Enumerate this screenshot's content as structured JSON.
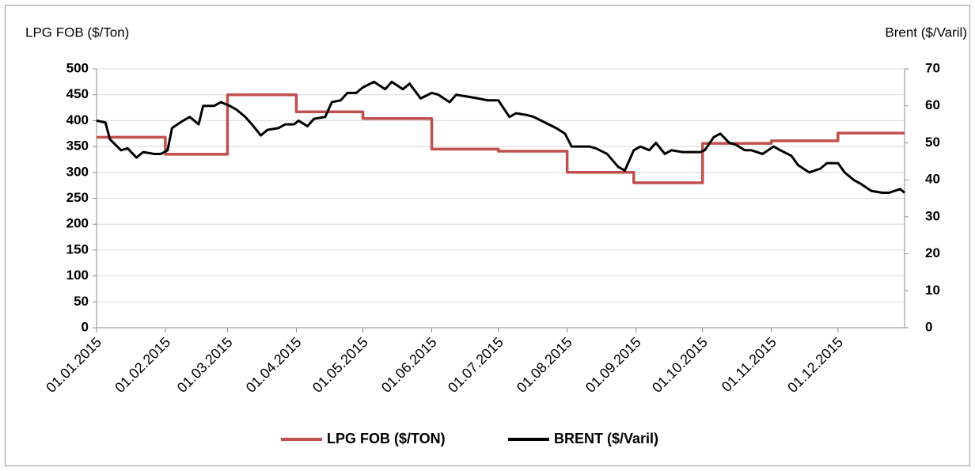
{
  "chart_data": {
    "type": "line",
    "y_label": "LPG FOB ($/Ton)",
    "y2_label": "Brent ($/Varil)",
    "xlim": [
      "2015-01-01",
      "2015-12-31"
    ],
    "xticks": [
      {
        "value": "2015-01-01",
        "label": "01.01.2015"
      },
      {
        "value": "2015-02-01",
        "label": "01.02.2015"
      },
      {
        "value": "2015-03-01",
        "label": "01.03.2015"
      },
      {
        "value": "2015-04-01",
        "label": "01.04.2015"
      },
      {
        "value": "2015-05-01",
        "label": "01.05.2015"
      },
      {
        "value": "2015-06-01",
        "label": "01.06.2015"
      },
      {
        "value": "2015-07-01",
        "label": "01.07.2015"
      },
      {
        "value": "2015-08-01",
        "label": "01.08.2015"
      },
      {
        "value": "2015-09-01",
        "label": "01.09.2015"
      },
      {
        "value": "2015-10-01",
        "label": "01.10.2015"
      },
      {
        "value": "2015-11-01",
        "label": "01.11.2015"
      },
      {
        "value": "2015-12-01",
        "label": "01.12.2015"
      }
    ],
    "ylim": [
      0,
      500
    ],
    "yticks": [
      0,
      50,
      100,
      150,
      200,
      250,
      300,
      350,
      400,
      450,
      500
    ],
    "y2lim": [
      0,
      70
    ],
    "y2ticks": [
      0,
      10,
      20,
      30,
      40,
      50,
      60,
      70
    ],
    "grid": true,
    "legend": "bottom",
    "series": [
      {
        "name": "LPG FOB ($/TON)",
        "color": "#c0504d",
        "axis": "y",
        "x": [
          "2015-01-01",
          "2015-02-01",
          "2015-02-01",
          "2015-03-01",
          "2015-03-01",
          "2015-04-01",
          "2015-04-01",
          "2015-05-01",
          "2015-05-01",
          "2015-06-01",
          "2015-06-01",
          "2015-07-01",
          "2015-07-01",
          "2015-08-01",
          "2015-08-01",
          "2015-08-31",
          "2015-08-31",
          "2015-10-01",
          "2015-10-01",
          "2015-11-01",
          "2015-11-01",
          "2015-12-01",
          "2015-12-01",
          "2015-12-31"
        ],
        "values": [
          368,
          368,
          335,
          335,
          450,
          450,
          417,
          417,
          404,
          404,
          345,
          345,
          341,
          341,
          300,
          300,
          280,
          280,
          356,
          356,
          361,
          361,
          376,
          376
        ]
      },
      {
        "name": "BRENT ($/Varil)",
        "color": "#000000",
        "axis": "y2",
        "x": [
          "2015-01-01",
          "2015-01-05",
          "2015-01-07",
          "2015-01-12",
          "2015-01-15",
          "2015-01-19",
          "2015-01-22",
          "2015-01-27",
          "2015-01-30",
          "2015-02-02",
          "2015-02-04",
          "2015-02-09",
          "2015-02-12",
          "2015-02-16",
          "2015-02-18",
          "2015-02-23",
          "2015-02-26",
          "2015-03-02",
          "2015-03-05",
          "2015-03-09",
          "2015-03-12",
          "2015-03-16",
          "2015-03-19",
          "2015-03-24",
          "2015-03-27",
          "2015-03-31",
          "2015-04-02",
          "2015-04-06",
          "2015-04-09",
          "2015-04-14",
          "2015-04-17",
          "2015-04-21",
          "2015-04-24",
          "2015-04-28",
          "2015-05-01",
          "2015-05-06",
          "2015-05-11",
          "2015-05-14",
          "2015-05-19",
          "2015-05-22",
          "2015-05-27",
          "2015-06-01",
          "2015-06-04",
          "2015-06-09",
          "2015-06-12",
          "2015-06-17",
          "2015-06-22",
          "2015-06-26",
          "2015-07-01",
          "2015-07-06",
          "2015-07-09",
          "2015-07-14",
          "2015-07-17",
          "2015-07-22",
          "2015-07-27",
          "2015-07-31",
          "2015-08-03",
          "2015-08-06",
          "2015-08-11",
          "2015-08-14",
          "2015-08-19",
          "2015-08-24",
          "2015-08-27",
          "2015-08-31",
          "2015-09-03",
          "2015-09-07",
          "2015-09-10",
          "2015-09-14",
          "2015-09-17",
          "2015-09-22",
          "2015-09-25",
          "2015-09-30",
          "2015-10-02",
          "2015-10-06",
          "2015-10-09",
          "2015-10-13",
          "2015-10-16",
          "2015-10-20",
          "2015-10-23",
          "2015-10-28",
          "2015-11-02",
          "2015-11-05",
          "2015-11-10",
          "2015-11-13",
          "2015-11-18",
          "2015-11-23",
          "2015-11-26",
          "2015-12-01",
          "2015-12-04",
          "2015-12-08",
          "2015-12-11",
          "2015-12-16",
          "2015-12-21",
          "2015-12-24",
          "2015-12-29",
          "2015-12-31"
        ],
        "values": [
          56,
          55.5,
          51,
          48,
          48.5,
          46,
          47.5,
          47,
          47,
          48,
          54,
          56,
          57,
          55,
          60,
          60,
          61,
          60,
          59,
          57,
          55,
          52,
          53.5,
          54,
          55,
          55,
          56,
          54.5,
          56.5,
          57,
          61,
          61.5,
          63.5,
          63.5,
          65,
          66.5,
          64.5,
          66.5,
          64.5,
          66,
          62,
          63.5,
          63,
          61,
          63,
          62.5,
          62,
          61.5,
          61.5,
          57,
          58,
          57.5,
          57,
          55.5,
          54,
          52.5,
          49,
          49,
          49,
          48.5,
          47,
          43.5,
          42.5,
          48,
          49,
          48,
          50,
          47,
          48,
          47.5,
          47.5,
          47.5,
          48,
          51.5,
          52.5,
          50,
          49.5,
          48,
          48,
          47,
          49,
          48,
          46.5,
          44,
          42,
          43,
          44.5,
          44.5,
          42,
          40,
          39,
          37,
          36.5,
          36.5,
          37.5,
          36.5
        ]
      }
    ]
  }
}
